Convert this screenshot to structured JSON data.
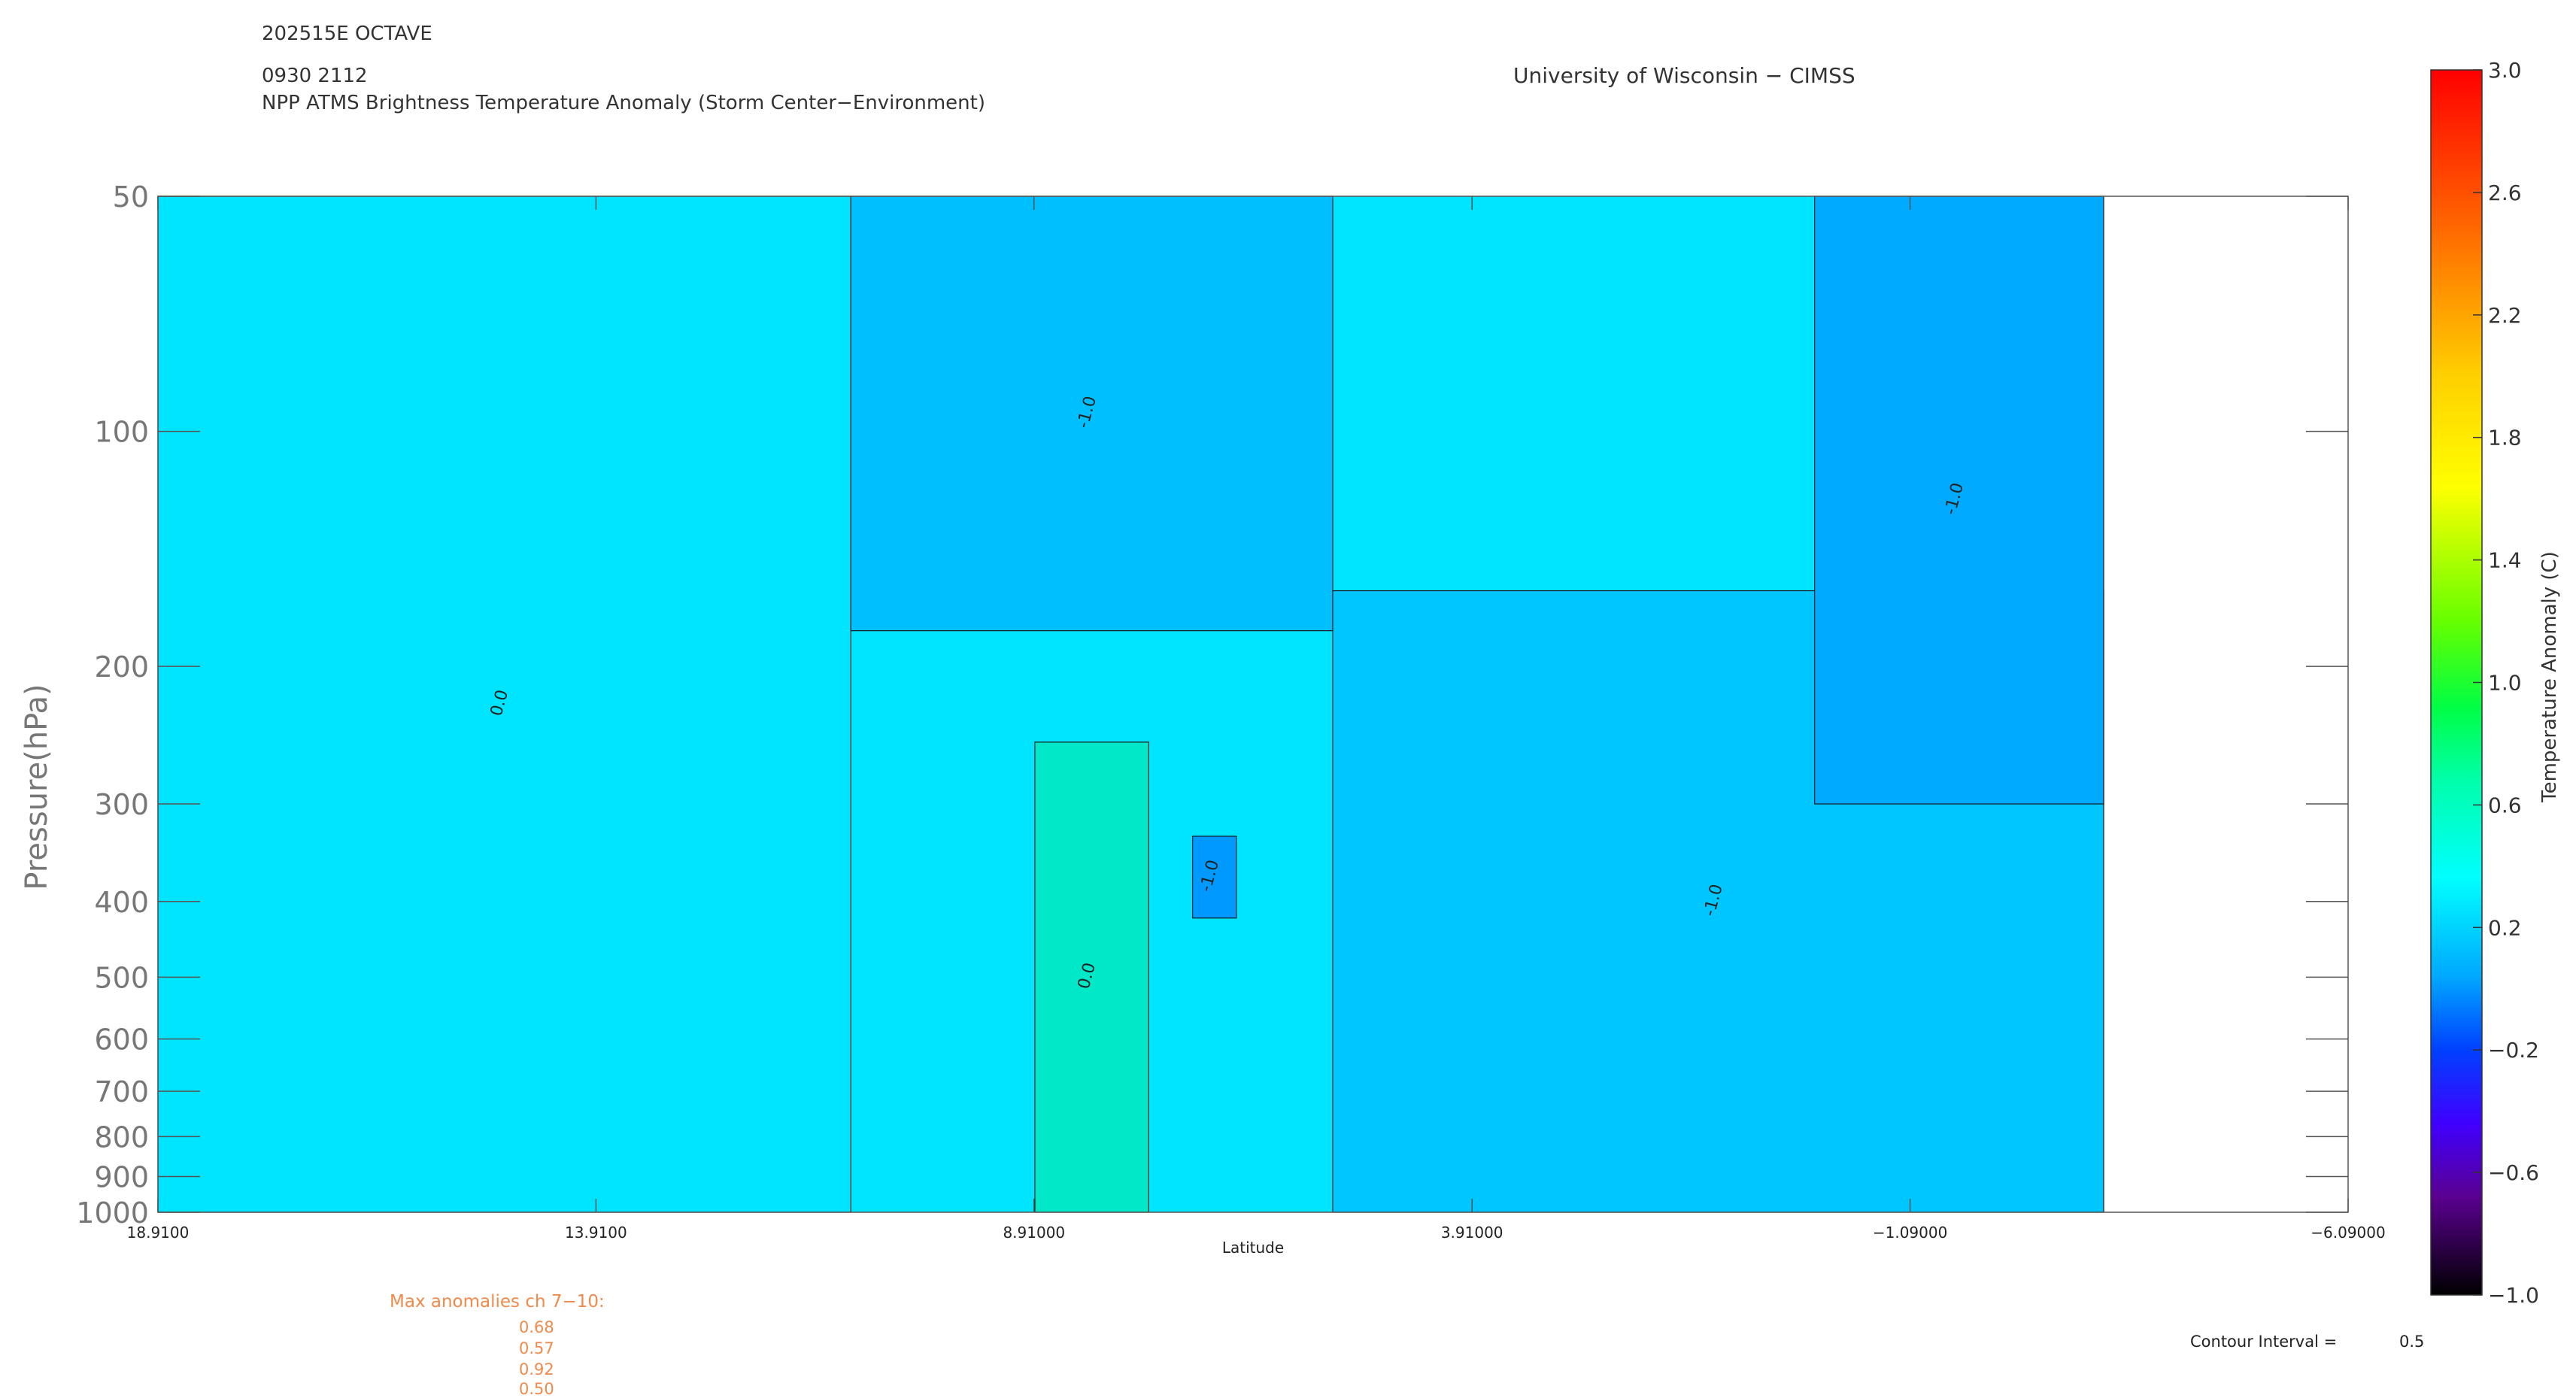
{
  "header": {
    "storm": "202515E OCTAVE",
    "datetime": "0930 2112",
    "title": "NPP ATMS Brightness Temperature Anomaly (Storm Center−Environment)",
    "institution": "University of Wisconsin − CIMSS"
  },
  "chart_data": {
    "type": "heatmap",
    "title": "NPP ATMS Brightness Temperature Anomaly (Storm Center−Environment)",
    "xlabel": "Latitude",
    "ylabel": "Pressure(hPa)",
    "x_ticks": [
      "18.9100",
      "13.9100",
      "8.91000",
      "3.91000",
      "−1.09000",
      "−6.09000"
    ],
    "x_tick_values": [
      18.91,
      13.91,
      8.91,
      3.91,
      -1.09,
      -6.09
    ],
    "xlim": [
      18.91,
      -6.09
    ],
    "y_ticks": [
      "50",
      "100",
      "200",
      "300",
      "400",
      "500",
      "600",
      "700",
      "800",
      "900",
      "1000"
    ],
    "y_tick_values": [
      50,
      100,
      200,
      300,
      400,
      500,
      600,
      700,
      800,
      900,
      1000
    ],
    "ylim": [
      1000,
      50
    ],
    "y_scale": "log",
    "data_extent_lat": [
      18.91,
      -3.3
    ],
    "colorbar": {
      "label": "Temperature Anomaly (C)",
      "range": [
        -1.0,
        3.0
      ],
      "ticks": [
        "3.0",
        "2.6",
        "2.2",
        "1.8",
        "1.4",
        "1.0",
        "0.6",
        "0.2",
        "−0.2",
        "−0.6",
        "−1.0"
      ],
      "tick_values": [
        3.0,
        2.6,
        2.2,
        1.8,
        1.4,
        1.0,
        0.6,
        0.2,
        -0.2,
        -0.6,
        -1.0
      ]
    },
    "regions": [
      {
        "label": "0.0",
        "level": 0.5,
        "color": "#00e5ff",
        "lat_start": 18.91,
        "lat_end": 11.0,
        "p_top": 50,
        "p_bottom": 1000
      },
      {
        "label": "-1.0",
        "level": 0.3,
        "color": "#00bfff",
        "lat_start": 11.0,
        "lat_end": 5.5,
        "p_top": 50,
        "p_bottom": 180
      },
      {
        "label": "0.0",
        "level": 0.6,
        "color": "#00e8c8",
        "lat_start": 8.9,
        "lat_end": 7.6,
        "p_top": 250,
        "p_bottom": 1000
      },
      {
        "label": "-1.0",
        "level": 0.2,
        "color": "#0099ff",
        "lat_start": 7.1,
        "lat_end": 6.6,
        "p_top": 330,
        "p_bottom": 420
      },
      {
        "label": "-1.0",
        "level": 0.3,
        "color": "#00c6ff",
        "lat_start": 5.5,
        "lat_end": -3.3,
        "p_top": 160,
        "p_bottom": 1000
      },
      {
        "label": "-1.0",
        "level": 0.25,
        "color": "#00aaff",
        "lat_start": 0.0,
        "lat_end": -3.3,
        "p_top": 50,
        "p_bottom": 300
      }
    ],
    "contour_labels": [
      "0.0",
      "-1.0"
    ],
    "contour_interval": 0.5,
    "max_anomalies_ch_7_10": [
      0.68,
      0.57,
      0.92,
      0.5
    ]
  },
  "footer": {
    "max_title": "Max anomalies ch 7−10:",
    "max_values": [
      "0.68",
      "0.57",
      "0.92",
      "0.50"
    ],
    "contour_label": "Contour Interval =",
    "contour_value": "0.5"
  },
  "colors": {
    "background": "#ffffff",
    "text": "#333333",
    "orange_text": "#f08a4b",
    "cyan": "#00e5ff",
    "light_blue": "#00c6ff",
    "blue": "#0099ff"
  }
}
